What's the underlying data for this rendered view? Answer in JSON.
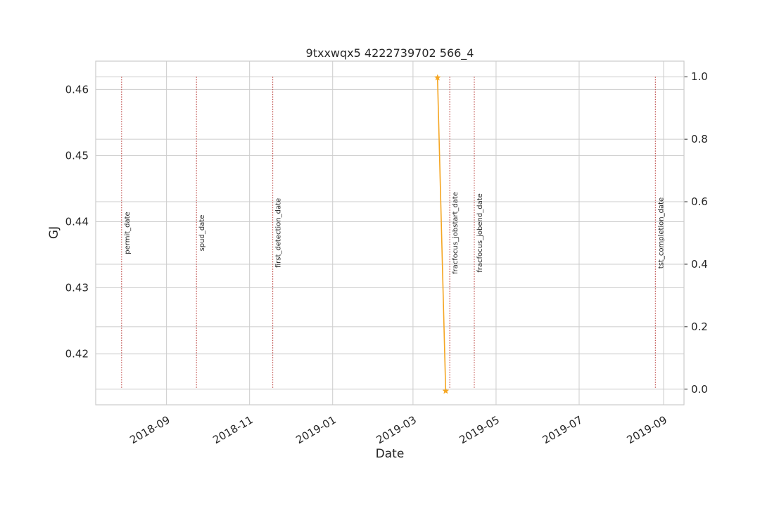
{
  "chart_data": {
    "type": "line",
    "title": "9txxwqx5 4222739702 566_4",
    "xlabel": "Date",
    "ylabel": "GJ",
    "ylabel_color": "#1f77b4",
    "xlim": [
      "2018-07-11",
      "2019-09-16"
    ],
    "x_ticks": [
      "2018-09-01",
      "2018-11-01",
      "2019-01-01",
      "2019-03-01",
      "2019-05-01",
      "2019-07-01",
      "2019-09-01"
    ],
    "x_tick_labels": [
      "2018-09",
      "2018-11",
      "2019-01",
      "2019-03",
      "2019-05",
      "2019-07",
      "2019-09"
    ],
    "ylim_left": [
      0.4123,
      0.4643
    ],
    "y_ticks_left": [
      0.42,
      0.43,
      0.44,
      0.45,
      0.46
    ],
    "y_tick_labels_left": [
      "0.42",
      "0.43",
      "0.44",
      "0.45",
      "0.46"
    ],
    "ylim_right": [
      -0.05,
      1.05
    ],
    "y_ticks_right": [
      0.0,
      0.2,
      0.4,
      0.6,
      0.8,
      1.0
    ],
    "y_tick_labels_right": [
      "0.0",
      "0.2",
      "0.4",
      "0.6",
      "0.8",
      "1.0"
    ],
    "grid": true,
    "series": [
      {
        "color": "#f5a623",
        "marker": "star",
        "points": [
          {
            "x": "2019-03-19",
            "y": 0.4618
          },
          {
            "x": "2019-03-25",
            "y": 0.4144
          }
        ]
      }
    ],
    "events": [
      {
        "label": "permit_date",
        "date": "2018-07-30"
      },
      {
        "label": "spud_date",
        "date": "2018-09-23"
      },
      {
        "label": "first_detection_date",
        "date": "2018-11-18"
      },
      {
        "label": "fracfocus_jobstart_date",
        "date": "2019-03-28"
      },
      {
        "label": "fracfocus_jobend_date",
        "date": "2019-04-15"
      },
      {
        "label": "tst_completion_date",
        "date": "2019-08-26"
      }
    ],
    "event_line_color": "#c0504d"
  }
}
